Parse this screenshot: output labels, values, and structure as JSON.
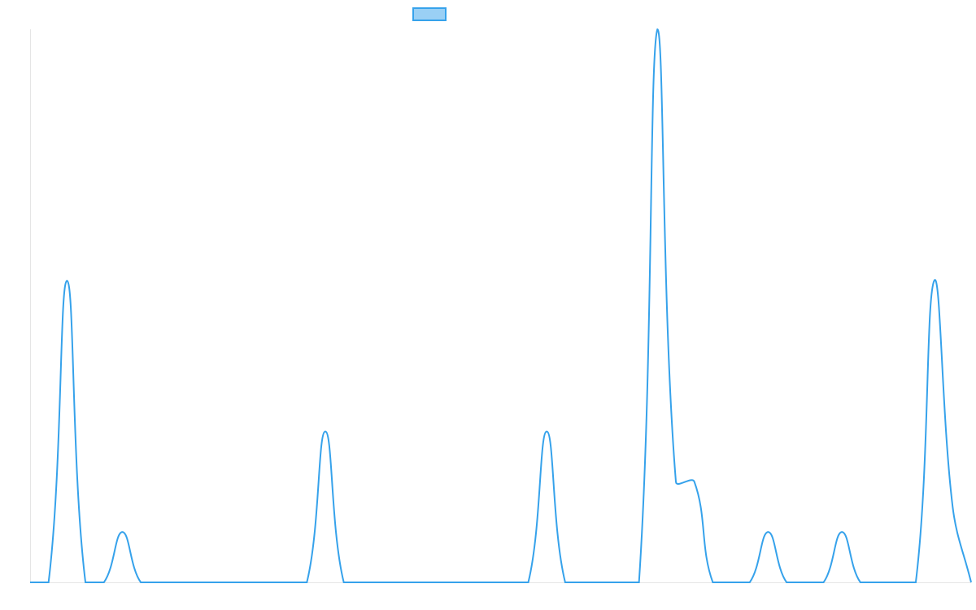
{
  "chart_data": {
    "type": "line",
    "categories": [
      null,
      null,
      null,
      null,
      null,
      null,
      null,
      null,
      null,
      null,
      null,
      null,
      null,
      null,
      null,
      null,
      null,
      null,
      null,
      null,
      null,
      null,
      null,
      null,
      null,
      null,
      null,
      null,
      null,
      null,
      null,
      null,
      null,
      null,
      null,
      null,
      null,
      null,
      null,
      null,
      null,
      null,
      null,
      null,
      null,
      null,
      null,
      null,
      null,
      null,
      null,
      null
    ],
    "series": [
      {
        "color": "#36a2eb",
        "fill": "#9ad0f5",
        "values": [
          0,
          0,
          6,
          0,
          0,
          1,
          0,
          0,
          0,
          0,
          0,
          0,
          0,
          0,
          0,
          0,
          3,
          0,
          0,
          0,
          0,
          0,
          0,
          0,
          0,
          0,
          0,
          0,
          3,
          0,
          0,
          0,
          0,
          0,
          11,
          2,
          2,
          0,
          0,
          0,
          1,
          0,
          0,
          0,
          1,
          0,
          0,
          0,
          0,
          6,
          1.5,
          0
        ]
      }
    ],
    "ylim": [
      0,
      11
    ]
  }
}
